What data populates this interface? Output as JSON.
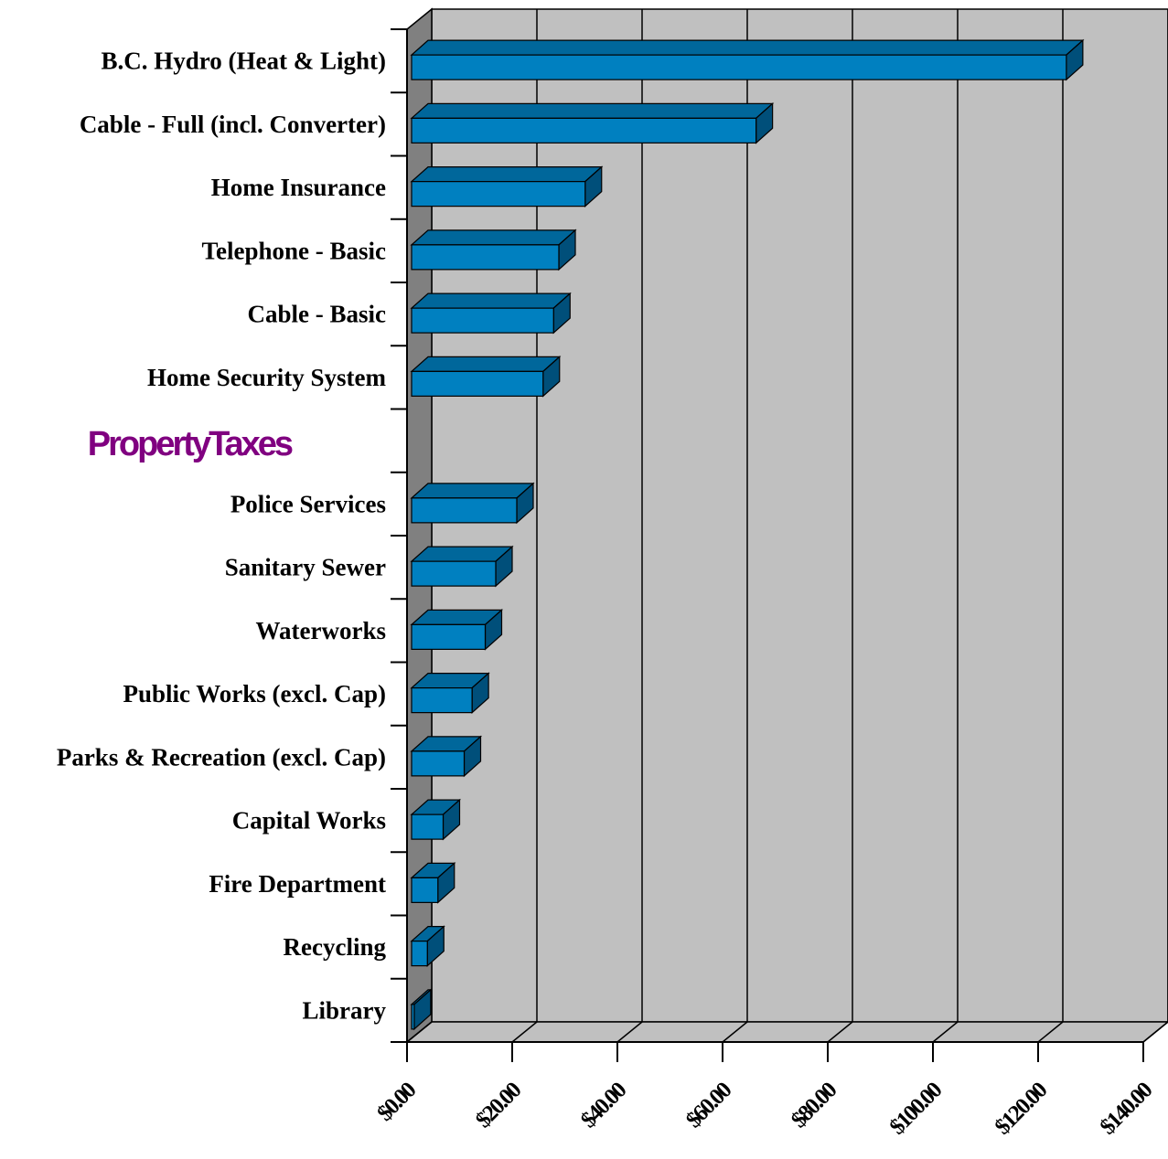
{
  "chart_data": {
    "type": "bar",
    "orientation": "horizontal",
    "three_d": true,
    "grid": true,
    "xlim": [
      0,
      140
    ],
    "x_ticks": [
      "$0.00",
      "$20.00",
      "$40.00",
      "$60.00",
      "$80.00",
      "$100.00",
      "$120.00",
      "$140.00"
    ],
    "x_tick_values": [
      0,
      20,
      40,
      60,
      80,
      100,
      120,
      140
    ],
    "group_labels": [
      "PropertyTaxes"
    ],
    "categories": [
      "B.C. Hydro (Heat & Light)",
      "Cable - Full (incl. Converter)",
      "Home Insurance",
      "Telephone - Basic",
      "Cable - Basic",
      "Home Security System",
      "",
      "Police Services",
      "Sanitary Sewer",
      "Waterworks",
      "Public Works (excl. Cap)",
      "Parks & Recreation (excl. Cap)",
      "Capital Works",
      "Fire Department",
      "Recycling",
      "Library"
    ],
    "values": [
      124.5,
      65.5,
      33,
      28,
      27,
      25,
      null,
      20,
      16,
      14,
      11.5,
      10,
      6,
      5,
      3,
      0.5
    ],
    "colors": {
      "bar_front": "#0080c0",
      "bar_top": "#00679b",
      "bar_side": "#004f7a",
      "plot_back": "#c0c0c0",
      "plot_left_wall": "#808080",
      "plot_floor": "#c0c0c0",
      "group_label": "#800080"
    }
  }
}
